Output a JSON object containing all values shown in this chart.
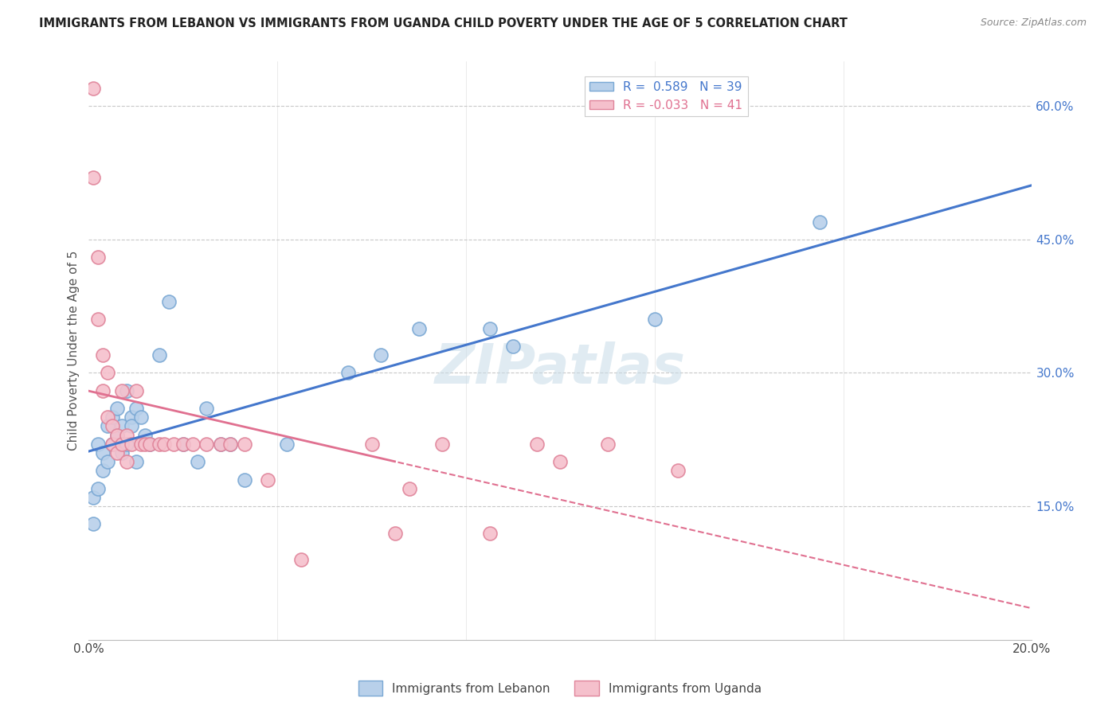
{
  "title": "IMMIGRANTS FROM LEBANON VS IMMIGRANTS FROM UGANDA CHILD POVERTY UNDER THE AGE OF 5 CORRELATION CHART",
  "source": "Source: ZipAtlas.com",
  "ylabel": "Child Poverty Under the Age of 5",
  "xlim": [
    0.0,
    0.2
  ],
  "ylim": [
    0.0,
    0.65
  ],
  "xticks": [
    0.0,
    0.04,
    0.08,
    0.12,
    0.16,
    0.2
  ],
  "xticklabels": [
    "0.0%",
    "",
    "",
    "",
    "",
    "20.0%"
  ],
  "yticks_right": [
    0.15,
    0.3,
    0.45,
    0.6
  ],
  "ytick_labels_right": [
    "15.0%",
    "30.0%",
    "45.0%",
    "60.0%"
  ],
  "grid_color": "#c8c8c8",
  "background_color": "#ffffff",
  "lebanon_color": "#b8d0ea",
  "lebanon_edge_color": "#7aa8d4",
  "uganda_color": "#f5c0cc",
  "uganda_edge_color": "#e0849a",
  "lebanon_R": 0.589,
  "lebanon_N": 39,
  "uganda_R": -0.033,
  "uganda_N": 41,
  "lebanon_line_color": "#4477cc",
  "uganda_line_color": "#e07090",
  "watermark": "ZIPatlas",
  "lebanon_scatter_x": [
    0.001,
    0.001,
    0.002,
    0.002,
    0.003,
    0.003,
    0.004,
    0.004,
    0.005,
    0.005,
    0.006,
    0.006,
    0.007,
    0.007,
    0.008,
    0.008,
    0.009,
    0.009,
    0.01,
    0.01,
    0.011,
    0.012,
    0.013,
    0.015,
    0.017,
    0.02,
    0.023,
    0.025,
    0.028,
    0.03,
    0.033,
    0.042,
    0.055,
    0.062,
    0.07,
    0.085,
    0.09,
    0.12,
    0.155
  ],
  "lebanon_scatter_y": [
    0.13,
    0.16,
    0.17,
    0.22,
    0.19,
    0.21,
    0.2,
    0.24,
    0.22,
    0.25,
    0.23,
    0.26,
    0.21,
    0.24,
    0.22,
    0.28,
    0.25,
    0.24,
    0.2,
    0.26,
    0.25,
    0.23,
    0.22,
    0.32,
    0.38,
    0.22,
    0.2,
    0.26,
    0.22,
    0.22,
    0.18,
    0.22,
    0.3,
    0.32,
    0.35,
    0.35,
    0.33,
    0.36,
    0.47
  ],
  "uganda_scatter_x": [
    0.001,
    0.001,
    0.002,
    0.002,
    0.003,
    0.003,
    0.004,
    0.004,
    0.005,
    0.005,
    0.006,
    0.006,
    0.007,
    0.007,
    0.008,
    0.008,
    0.009,
    0.01,
    0.011,
    0.012,
    0.013,
    0.015,
    0.016,
    0.018,
    0.02,
    0.022,
    0.025,
    0.028,
    0.03,
    0.033,
    0.038,
    0.045,
    0.06,
    0.065,
    0.068,
    0.075,
    0.085,
    0.095,
    0.1,
    0.11,
    0.125
  ],
  "uganda_scatter_y": [
    0.62,
    0.52,
    0.43,
    0.36,
    0.32,
    0.28,
    0.3,
    0.25,
    0.24,
    0.22,
    0.21,
    0.23,
    0.22,
    0.28,
    0.2,
    0.23,
    0.22,
    0.28,
    0.22,
    0.22,
    0.22,
    0.22,
    0.22,
    0.22,
    0.22,
    0.22,
    0.22,
    0.22,
    0.22,
    0.22,
    0.18,
    0.09,
    0.22,
    0.12,
    0.17,
    0.22,
    0.12,
    0.22,
    0.2,
    0.22,
    0.19
  ]
}
